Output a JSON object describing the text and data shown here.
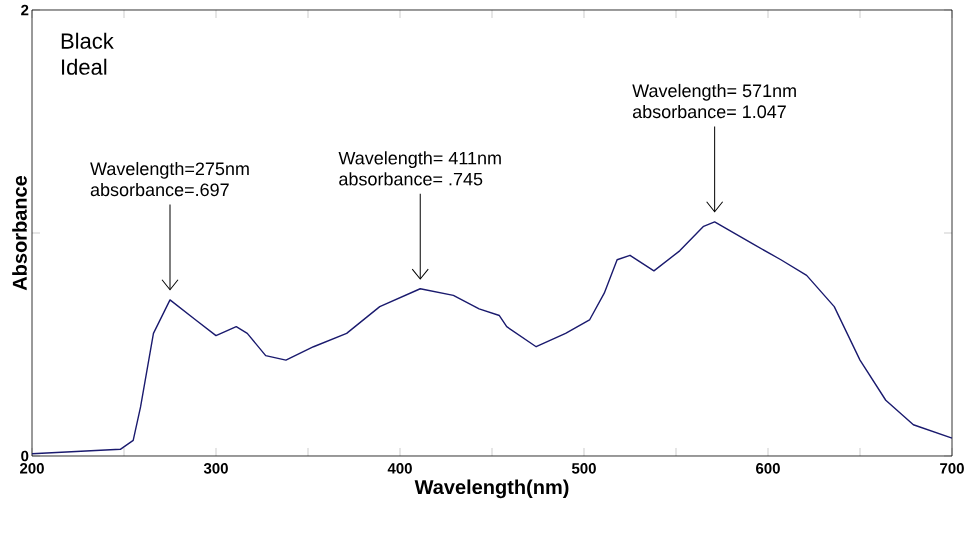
{
  "chart_data": {
    "type": "line",
    "title": "Black",
    "subtitle": "Ideal",
    "xlabel": "Wavelength(nm)",
    "ylabel": "Absorbance",
    "x": [
      200,
      248,
      255,
      259,
      266,
      275,
      289,
      300,
      311,
      317,
      327,
      338,
      353,
      371,
      389,
      411,
      429,
      443,
      454,
      458,
      474,
      490,
      503,
      511,
      518,
      525,
      538,
      552,
      565,
      571,
      592,
      607,
      621,
      636,
      650,
      664,
      679,
      700
    ],
    "series": [
      {
        "color": "#1a1a6e",
        "values": [
          0.01,
          0.03,
          0.07,
          0.22,
          0.55,
          0.7,
          0.61,
          0.54,
          0.58,
          0.55,
          0.45,
          0.43,
          0.49,
          0.55,
          0.67,
          0.75,
          0.72,
          0.66,
          0.63,
          0.58,
          0.49,
          0.55,
          0.61,
          0.73,
          0.88,
          0.9,
          0.83,
          0.92,
          1.03,
          1.05,
          0.95,
          0.88,
          0.81,
          0.67,
          0.43,
          0.25,
          0.14,
          0.08
        ]
      }
    ],
    "xlim": [
      200,
      700
    ],
    "ylim": [
      0,
      2
    ],
    "xticks": [
      200,
      {
        "value": 250,
        "label": null
      },
      300,
      {
        "value": 350,
        "label": null
      },
      400,
      {
        "value": 450,
        "label": null
      },
      500,
      {
        "value": 550,
        "label": null
      },
      600,
      {
        "value": 650,
        "label": null
      },
      700
    ],
    "yticks": [
      0,
      {
        "value": 1,
        "label": null
      },
      2
    ],
    "annotations": [
      "Wavelength=275nm",
      {
        "text": "absorbance=.697",
        "x": 275,
        "y": 0.697
      },
      "Wavelength= 411nm",
      {
        "text": "absorbance= .745",
        "x": 411,
        "y": 0.745
      },
      "Wavelength= 571nm",
      {
        "text": "absorbance= 1.047",
        "x": 571,
        "y": 1.047
      }
    ],
    "grid": false,
    "marker": "none",
    "line_style": "solid"
  }
}
